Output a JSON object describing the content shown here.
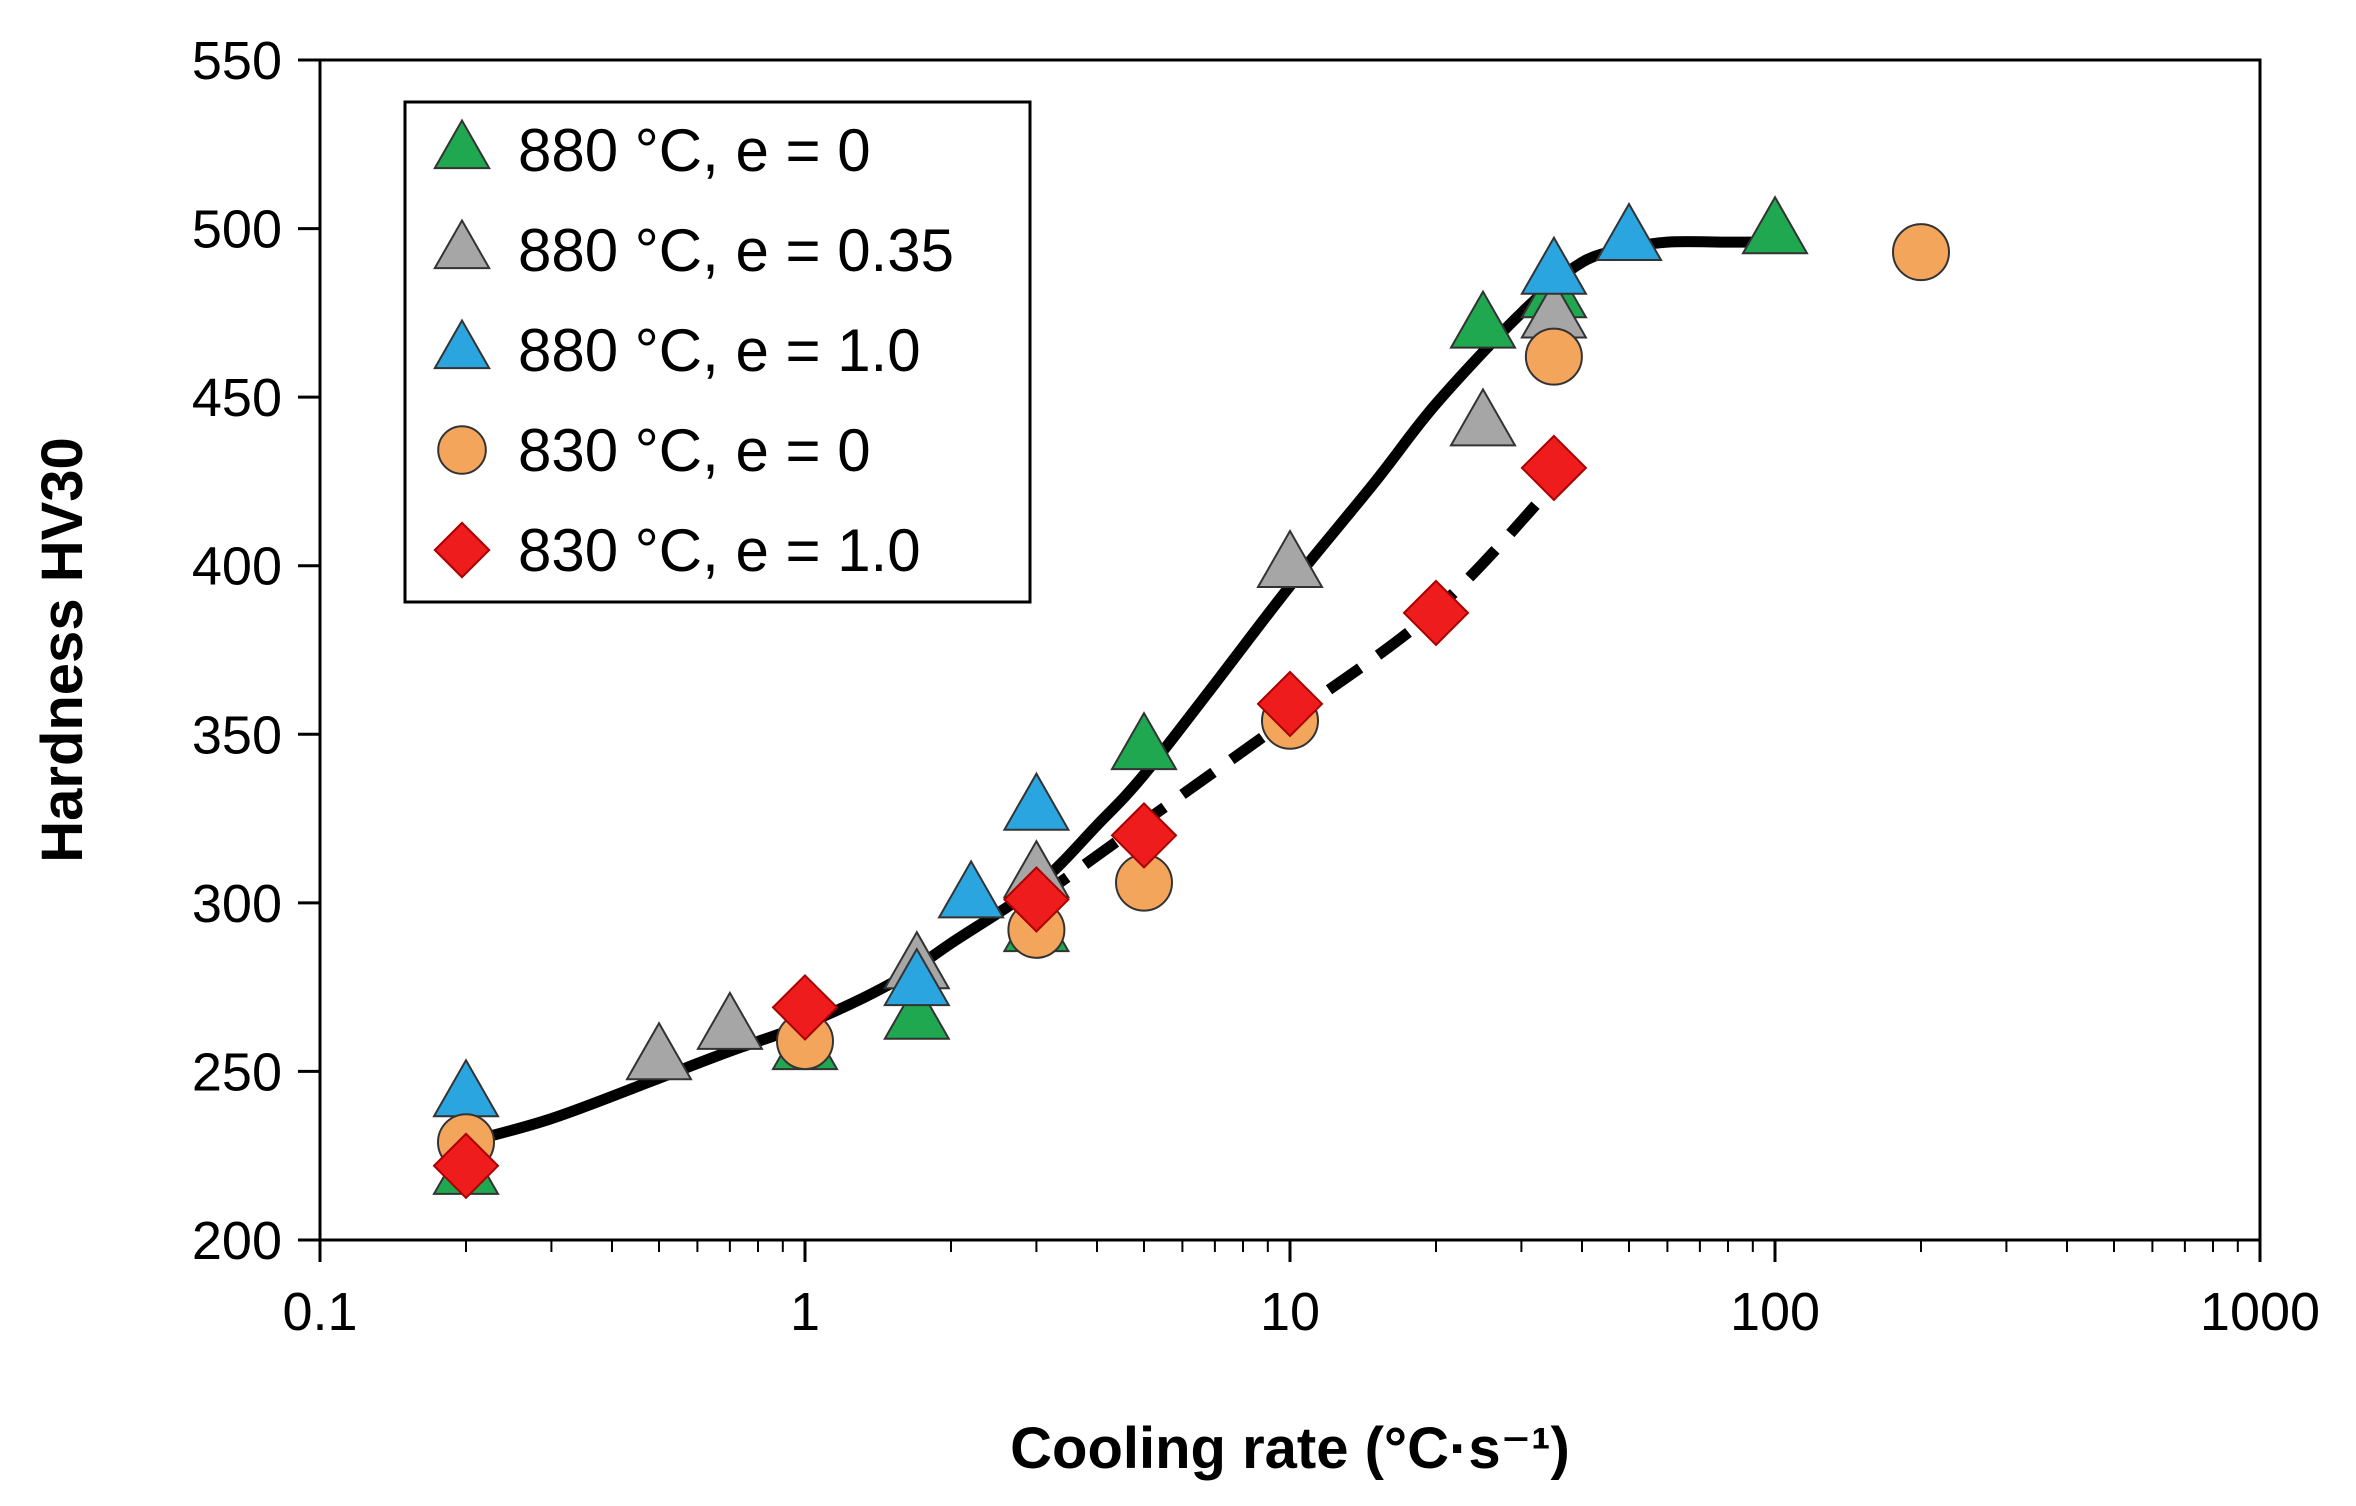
{
  "chart_data": {
    "type": "scatter",
    "title": "",
    "xlabel": "Cooling rate (°C·s⁻¹)",
    "ylabel": "Hardness HV30",
    "xscale": "log",
    "xlim": [
      0.1,
      1000
    ],
    "ylim": [
      200,
      550
    ],
    "x_ticks": [
      0.1,
      1,
      10,
      100,
      1000
    ],
    "x_tick_labels": [
      "0.1",
      "1",
      "10",
      "100",
      "1000"
    ],
    "y_ticks": [
      200,
      250,
      300,
      350,
      400,
      450,
      500,
      550
    ],
    "y_tick_labels": [
      "200",
      "250",
      "300",
      "350",
      "400",
      "450",
      "500",
      "550"
    ],
    "legend_position": "top-left",
    "series": [
      {
        "name": "880 °C, e = 0",
        "marker": "triangle",
        "color": "#1fa84f",
        "x": [
          0.2,
          1,
          1.7,
          3,
          5,
          25,
          35,
          100
        ],
        "y": [
          220,
          257,
          266,
          292,
          346,
          471,
          480,
          499
        ]
      },
      {
        "name": "880 °C, e = 0.35",
        "marker": "triangle",
        "color": "#a6a6a6",
        "x": [
          0.5,
          0.7,
          1.7,
          3,
          10,
          25,
          35
        ],
        "y": [
          254,
          263,
          281,
          308,
          400,
          442,
          474
        ]
      },
      {
        "name": "880 °C, e = 1.0",
        "marker": "triangle",
        "color": "#2ba5e0",
        "x": [
          0.2,
          1.7,
          2.2,
          3,
          35,
          50
        ],
        "y": [
          243,
          276,
          302,
          328,
          487,
          497
        ]
      },
      {
        "name": "830 °C, e = 0",
        "marker": "circle",
        "color": "#f4a55c",
        "x": [
          0.2,
          1,
          3,
          5,
          10,
          35,
          200
        ],
        "y": [
          229,
          259,
          292,
          306,
          354,
          462,
          493
        ]
      },
      {
        "name": "830 °C, e = 1.0",
        "marker": "diamond",
        "color": "#ee1c1c",
        "x": [
          0.2,
          1,
          3,
          5,
          10,
          20,
          35
        ],
        "y": [
          222,
          269,
          301,
          320,
          359,
          386,
          429
        ]
      }
    ],
    "fit_lines": [
      {
        "name": "fit-880",
        "style": "solid",
        "color": "#000000",
        "x": [
          0.2,
          0.3,
          0.5,
          0.7,
          1,
          1.5,
          2,
          3,
          4,
          5,
          7,
          10,
          15,
          20,
          30,
          40,
          50,
          60,
          80,
          100
        ],
        "y": [
          229,
          236,
          248,
          256,
          264,
          276,
          288,
          305,
          323,
          338,
          365,
          394,
          425,
          448,
          475,
          490,
          494,
          496,
          496,
          496
        ]
      },
      {
        "name": "fit-830",
        "style": "dashed",
        "color": "#000000",
        "x": [
          3,
          5,
          10,
          20,
          35
        ],
        "y": [
          301,
          324,
          355,
          387,
          424
        ]
      }
    ]
  }
}
